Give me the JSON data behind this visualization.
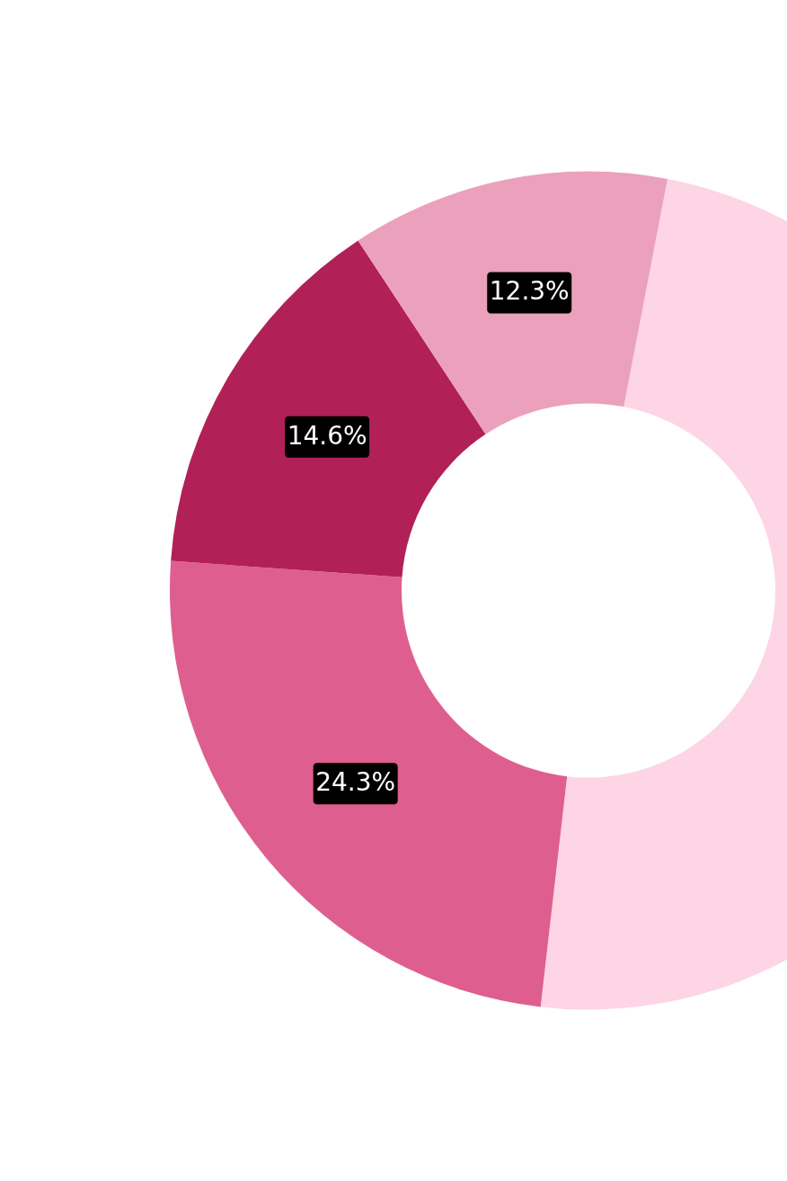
{
  "chart_data": {
    "type": "donut",
    "categories": [
      null,
      null,
      null,
      null
    ],
    "values": [
      48.8,
      24.3,
      14.6,
      12.3
    ],
    "colors": [
      "#fdd5e5",
      "#de5f8f",
      "#b22058",
      "#eba0bb"
    ],
    "value_labels": [
      null,
      "24.3%",
      "14.6%",
      "12.3%"
    ]
  }
}
